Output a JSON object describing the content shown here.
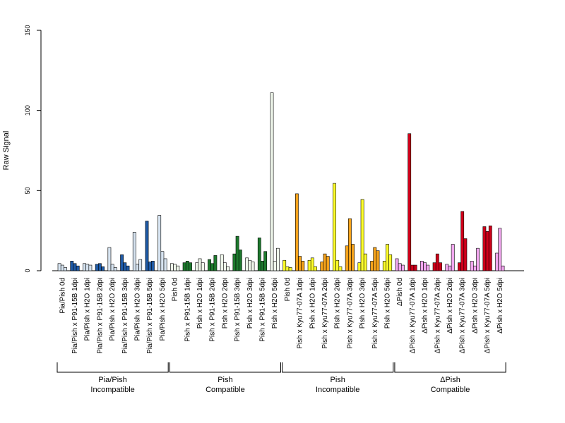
{
  "chart_data": {
    "type": "bar",
    "ylabel": "Raw Signal",
    "ylim": [
      0,
      150
    ],
    "yticks": [
      0,
      50,
      100,
      150
    ],
    "categories": [
      "Pia/Pish 0d",
      "Pia/Pish x P91-15B 1dpi",
      "Pia/Pish x H2O 1dpi",
      "Pia/Pish x P91-15B 2dpi",
      "Pia/Pish x H2O 2dpi",
      "Pia/Pish x P91-15B 3dpi",
      "Pia/Pish x H2O 3dpi",
      "Pia/Pish x P91-15B 5dpi",
      "Pia/Pish x H2O 5dpi",
      "Pish 0d",
      "Pish x P91-15B 1dpi",
      "Pish x H2O 1dpi",
      "Pish x P91-15B 2dpi",
      "Pish x H2O 2dpi",
      "Pish x P91-15B 3dpi",
      "Pish x H2O 3dpi",
      "Pish x P91-15B 5dpi",
      "Pish x H2O 5dpi",
      "Pish 0d",
      "Pish x Kyu77-07A 1dpi",
      "Pish x H2O 1dpi",
      "Pish x Kyu77-07A 2dpi",
      "Pish x H2O 2dpi",
      "Pish x Kyu77-07A 3dpi",
      "Pish x H2O 3dpi",
      "Pish x Kyu77-07A 5dpi",
      "Pish x H2O 5dpi",
      "ΔPish 0d",
      "ΔPish x Kyu77-07A 1dpi",
      "ΔPish x H2O 1dpi",
      "ΔPish x Kyu77-07A 2dpi",
      "ΔPish x H2O 2dpi",
      "ΔPish x Kyu77-07A 3dpi",
      "ΔPish x H2O 3dpi",
      "ΔPish x Kyu77-07A 5dpi",
      "ΔPish x H2O 5dpi"
    ],
    "values": [
      [
        4.5,
        3.5,
        2
      ],
      [
        6,
        4.5,
        3
      ],
      [
        4.5,
        4,
        3.5
      ],
      [
        4,
        4.5,
        2.5
      ],
      [
        14.5,
        4,
        2
      ],
      [
        10,
        5,
        3
      ],
      [
        24,
        4,
        7
      ],
      [
        31,
        5.5,
        6
      ],
      [
        34.5,
        12,
        7.5
      ],
      [
        4.5,
        4,
        3
      ],
      [
        5,
        6,
        5
      ],
      [
        5,
        7.5,
        5
      ],
      [
        7,
        4.5,
        9.5
      ],
      [
        10,
        5,
        2.5
      ],
      [
        10.5,
        21.5,
        13
      ],
      [
        8,
        6.5,
        5.5
      ],
      [
        20.5,
        6,
        12
      ],
      [
        111,
        6,
        14
      ],
      [
        6.5,
        2.5,
        2
      ],
      [
        48,
        9,
        6
      ],
      [
        6.5,
        8,
        2.5
      ],
      [
        5.5,
        10.5,
        9
      ],
      [
        54.5,
        6.5,
        2.5
      ],
      [
        15.5,
        32.5,
        16.5
      ],
      [
        5,
        44.5,
        10.5
      ],
      [
        6,
        14.5,
        12.5
      ],
      [
        6,
        16.5,
        10
      ],
      [
        7.5,
        4.5,
        3.5
      ],
      [
        85.5,
        3.5,
        3.5
      ],
      [
        6,
        5,
        3.5
      ],
      [
        5,
        10.5,
        5
      ],
      [
        4,
        3,
        16.5
      ],
      [
        5,
        37,
        20
      ],
      [
        6,
        3,
        14
      ],
      [
        27.5,
        24.5,
        28
      ],
      [
        11,
        26.5,
        3
      ]
    ],
    "groups": [
      {
        "label_line1": "Pia/Pish",
        "label_line2": "Incompatible",
        "start": 0,
        "end": 8
      },
      {
        "label_line1": "Pish",
        "label_line2": "Compatible",
        "start": 9,
        "end": 17
      },
      {
        "label_line1": "Pish",
        "label_line2": "Incompatible",
        "start": 18,
        "end": 26
      },
      {
        "label_line1": "ΔPish",
        "label_line2": "Compatible",
        "start": 27,
        "end": 35
      }
    ],
    "colors": {
      "group0": {
        "infected": "#1f5aa6",
        "mock": "#d6e3f0"
      },
      "group1": {
        "infected": "#1e7a2e",
        "mock": "#eef6ea"
      },
      "group2": {
        "infected": "#f5a31b",
        "mock": "#ffff2a"
      },
      "group3": {
        "infected": "#d0001a",
        "mock": "#f2a6ef"
      }
    },
    "legend": "none",
    "grid": false
  }
}
